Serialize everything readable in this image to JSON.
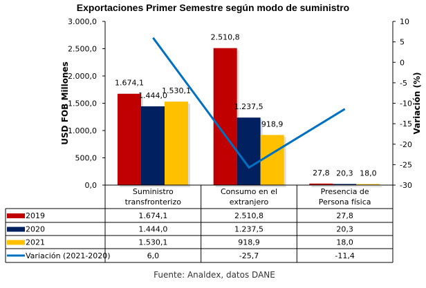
{
  "chart_data": {
    "type": "bar+line",
    "title": "Exportaciones Primer Semestre según modo de suministro",
    "ylabel": "USD FOB Millones",
    "y2label": "Variación (%)",
    "ylim": [
      0,
      3000
    ],
    "y2lim": [
      -30,
      10
    ],
    "yticks": [
      "0,0",
      "500,0",
      "1.000,0",
      "1.500,0",
      "2.000,0",
      "2.500,0",
      "3.000,0"
    ],
    "y2ticks": [
      "-30",
      "-25",
      "-20",
      "-15",
      "-10",
      "-5",
      "0",
      "5",
      "10"
    ],
    "categories": [
      [
        "Suministro",
        "transfronterizo"
      ],
      [
        "Consumo en el",
        "extranjero"
      ],
      [
        "Presencia de",
        "Persona física"
      ]
    ],
    "series": [
      {
        "name": "2019",
        "type": "bar",
        "color": "#C00000",
        "values": [
          1674.1,
          2510.8,
          27.8
        ],
        "labels": [
          "1.674,1",
          "2.510,8",
          "27,8"
        ]
      },
      {
        "name": "2020",
        "type": "bar",
        "color": "#002060",
        "values": [
          1444.0,
          1237.5,
          20.3
        ],
        "labels": [
          "1.444,0",
          "1.237,5",
          "20,3"
        ]
      },
      {
        "name": "2021",
        "type": "bar",
        "color": "#FFC000",
        "values": [
          1530.1,
          918.9,
          18.0
        ],
        "labels": [
          "1.530,1",
          "918,9",
          "18,0"
        ]
      },
      {
        "name": "Variación (2021-2020)",
        "type": "line",
        "axis": "right",
        "color": "#0070C0",
        "values": [
          6.0,
          -25.7,
          -11.4
        ],
        "labels": [
          "6,0",
          "-25,7",
          "-11,4"
        ]
      }
    ],
    "legend": "data-table",
    "grid": false
  },
  "source": "Fuente: Analdex, datos DANE"
}
